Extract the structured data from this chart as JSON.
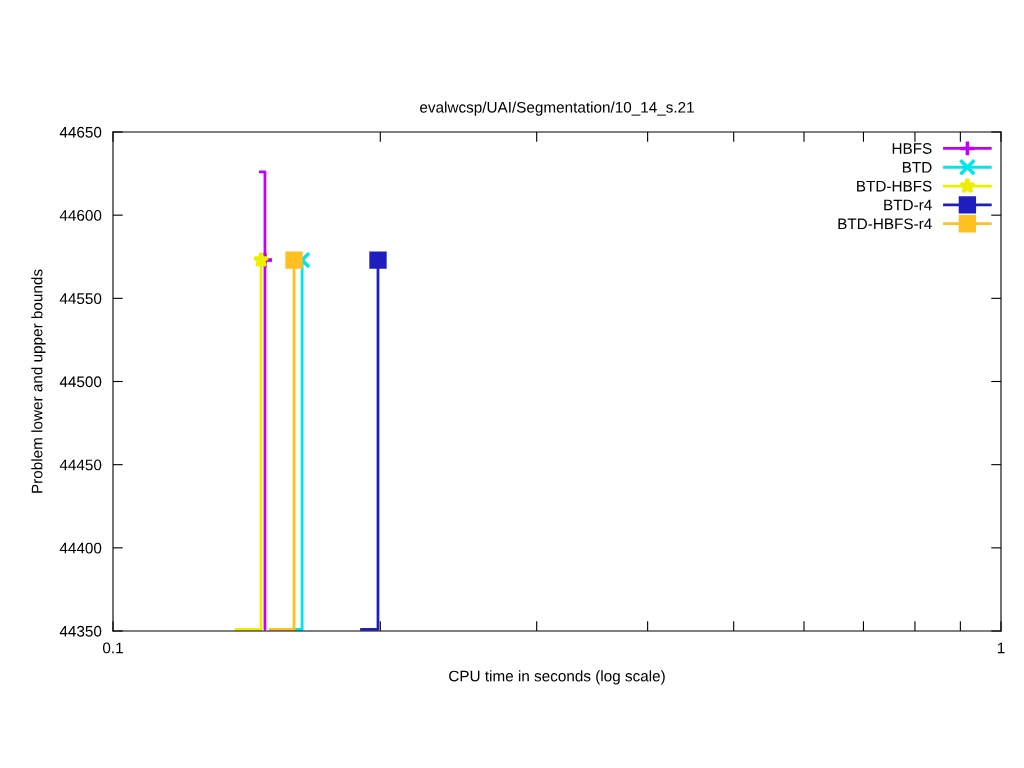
{
  "chart_data": {
    "type": "line",
    "title": "evalwcsp/UAI/Segmentation/10_14_s.21",
    "xlabel": "CPU time in seconds (log scale)",
    "ylabel": "Problem lower and upper bounds",
    "log": "x",
    "xlim": [
      0.1,
      1
    ],
    "xticks": [
      0.1,
      {
        "value": 0.2,
        "label": null
      },
      {
        "value": 0.3,
        "label": null
      },
      {
        "value": 0.4,
        "label": null
      },
      {
        "value": 0.5,
        "label": null
      },
      {
        "value": 0.6,
        "label": null
      },
      {
        "value": 0.7,
        "label": null
      },
      {
        "value": 0.8,
        "label": null
      },
      {
        "value": 0.9,
        "label": null
      },
      1
    ],
    "ylim": [
      44350,
      44650
    ],
    "yticks": [
      44350,
      44400,
      44450,
      44500,
      44550,
      44600,
      44650
    ],
    "grid": false,
    "legend": "top right",
    "series": [
      {
        "type": "line",
        "color": "#bf00ff",
        "x": [
          0.146,
          0.1483,
          0.1483,
          0.1483,
          0.151
        ],
        "values": [
          44626,
          44626,
          44351,
          44573,
          44573
        ]
      },
      {
        "type": "scatter",
        "name": "HBFS",
        "color": "#bf00ff",
        "marker": "plus",
        "x": [
          0.1483
        ],
        "values": [
          44573
        ]
      },
      {
        "type": "line",
        "color": "#00e5ee",
        "x": [
          0.1599,
          0.1633,
          0.1633
        ],
        "values": [
          44351,
          44351,
          44573
        ]
      },
      {
        "type": "scatter",
        "name": "BTD",
        "color": "#00e5ee",
        "marker": "cross",
        "x": [
          0.1633
        ],
        "values": [
          44573
        ]
      },
      {
        "type": "line",
        "color": "#eeee00",
        "x": [
          0.1372,
          0.1468,
          0.1468
        ],
        "values": [
          44351,
          44351,
          44573
        ]
      },
      {
        "type": "scatter",
        "name": "BTD-HBFS",
        "color": "#eeee00",
        "marker": "star",
        "x": [
          0.1468
        ],
        "values": [
          44573
        ]
      },
      {
        "type": "line",
        "color": "#1f1fbf",
        "x": [
          0.1898,
          0.1988,
          0.1988
        ],
        "values": [
          44351,
          44351,
          44573
        ]
      },
      {
        "type": "scatter",
        "name": "BTD-r4",
        "color": "#1f1fbf",
        "marker": "square",
        "x": [
          0.1988
        ],
        "values": [
          44573
        ]
      },
      {
        "type": "line",
        "color": "#ffc020",
        "x": [
          0.1498,
          0.1599,
          0.1599
        ],
        "values": [
          44351,
          44351,
          44573
        ]
      },
      {
        "type": "scatter",
        "name": "BTD-HBFS-r4",
        "color": "#ffc020",
        "marker": "square",
        "x": [
          0.1599
        ],
        "values": [
          44573
        ]
      }
    ]
  }
}
